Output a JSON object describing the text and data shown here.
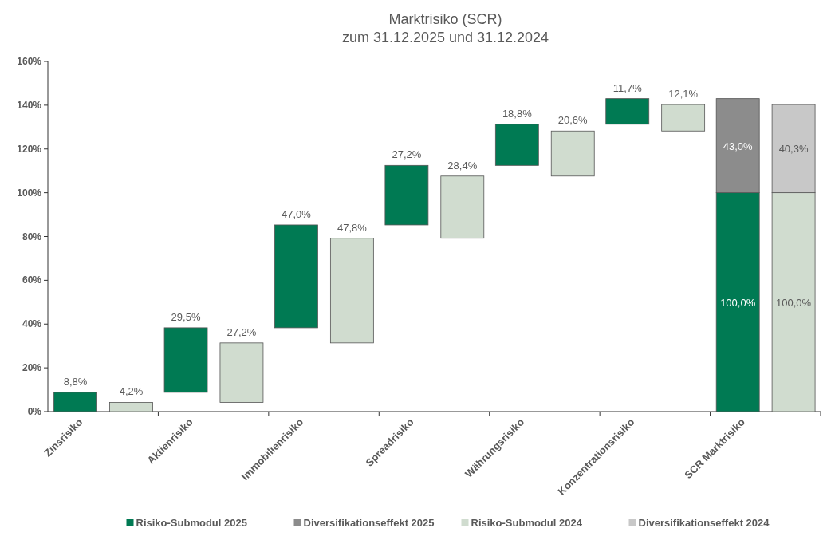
{
  "chart_data": {
    "type": "bar",
    "title": "Marktrisiko (SCR)",
    "subtitle": "zum 31.12.2025 und 31.12.2024",
    "categories": [
      "Zinsrisiko",
      "Aktienrisiko",
      "Immobilienrisiko",
      "Spreadrisiko",
      "Währungsrisiko",
      "Konzentrationsrisiko",
      "SCR Marktrisiko"
    ],
    "series": [
      {
        "name": "Risiko-Submodul 2025",
        "color": "#007a53",
        "values": [
          8.8,
          29.5,
          47.0,
          27.2,
          18.8,
          11.7,
          100.0
        ],
        "base": [
          0,
          8.8,
          38.3,
          85.3,
          112.5,
          131.3,
          0
        ],
        "value_labels": [
          "8,8%",
          "29,5%",
          "47,0%",
          "27,2%",
          "18,8%",
          "11,7%",
          "100,0%"
        ]
      },
      {
        "name": "Diversifikationseffekt 2025",
        "color": "#8c8c8c",
        "values": [
          null,
          null,
          null,
          null,
          null,
          null,
          43.0
        ],
        "base": [
          null,
          null,
          null,
          null,
          null,
          null,
          100
        ],
        "value_labels": [
          null,
          null,
          null,
          null,
          null,
          null,
          "43,0%"
        ]
      },
      {
        "name": "Risiko-Submodul 2024",
        "color": "#d0dccf",
        "values": [
          4.2,
          27.2,
          47.8,
          28.4,
          20.6,
          12.1,
          100.0
        ],
        "base": [
          0,
          4.2,
          31.4,
          79.2,
          107.6,
          128.2,
          0
        ],
        "value_labels": [
          "4,2%",
          "27,2%",
          "47,8%",
          "28,4%",
          "20,6%",
          "12,1%",
          "100,0%"
        ]
      },
      {
        "name": "Diversifikationseffekt 2024",
        "color": "#c8c8c8",
        "values": [
          null,
          null,
          null,
          null,
          null,
          null,
          40.3
        ],
        "base": [
          null,
          null,
          null,
          null,
          null,
          null,
          100
        ],
        "value_labels": [
          null,
          null,
          null,
          null,
          null,
          null,
          "40,3%"
        ]
      }
    ],
    "ylim": [
      0,
      160
    ],
    "yticks": [
      {
        "value": 0,
        "label": "0%"
      },
      {
        "value": 20,
        "label": "20%"
      },
      {
        "value": 40,
        "label": "40%"
      },
      {
        "value": 60,
        "label": "60%"
      },
      {
        "value": 80,
        "label": "80%"
      },
      {
        "value": 100,
        "label": "100%"
      },
      {
        "value": 120,
        "label": "120%"
      },
      {
        "value": 140,
        "label": "140%"
      },
      {
        "value": 160,
        "label": "160%"
      }
    ],
    "legend": "bottom"
  }
}
